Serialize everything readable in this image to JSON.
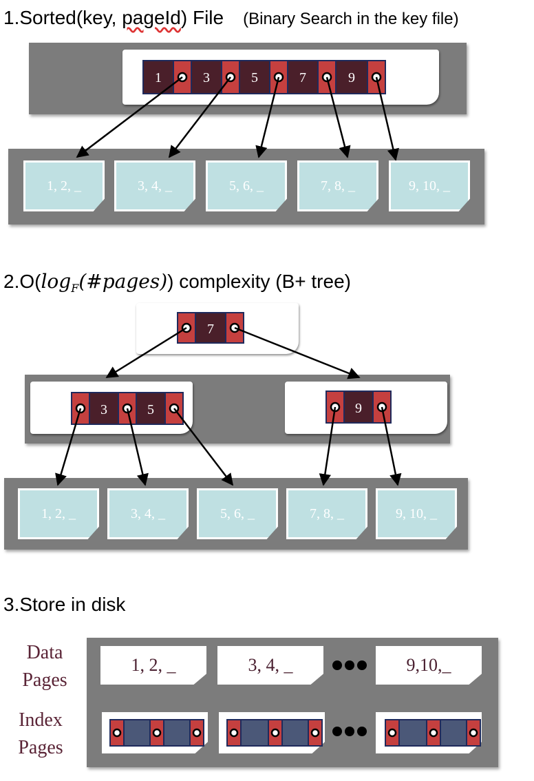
{
  "section1": {
    "title_prefix": "1.Sorted(key, ",
    "title_squiggle": "pageId",
    "title_suffix": ") File",
    "note": "(Binary Search in the key file)",
    "keys": [
      "1",
      "3",
      "5",
      "7",
      "9"
    ],
    "leaves": [
      "1, 2, _",
      "3, 4, _",
      "5, 6, _",
      "7, 8, _",
      "9, 10, _"
    ]
  },
  "section2": {
    "title_prefix": "2.O(",
    "title_log": "log",
    "title_base": "F",
    "title_arg": "(#pages)",
    "title_suffix": ") complexity (B+ tree)",
    "root_key": "7",
    "left_keys": [
      "3",
      "5"
    ],
    "right_key": "9",
    "leaves": [
      "1, 2, _",
      "3, 4, _",
      "5, 6, _",
      "7, 8, _",
      "9, 10, _"
    ]
  },
  "section3": {
    "title": "3.Store in disk",
    "data_label_1": "Data",
    "data_label_2": "Pages",
    "index_label_1": "Index",
    "index_label_2": "Pages",
    "data_pages": [
      "1, 2, _",
      "3, 4, _",
      "9,10,_"
    ]
  },
  "colors": {
    "key_cell": "#4a1f2a",
    "pointer_cell": "#c5403f",
    "cell_border": "#1f2a5c",
    "panel_gray": "#7c7c7c",
    "leaf_fill": "#bfe0e2",
    "index_cell": "#4b5878"
  }
}
